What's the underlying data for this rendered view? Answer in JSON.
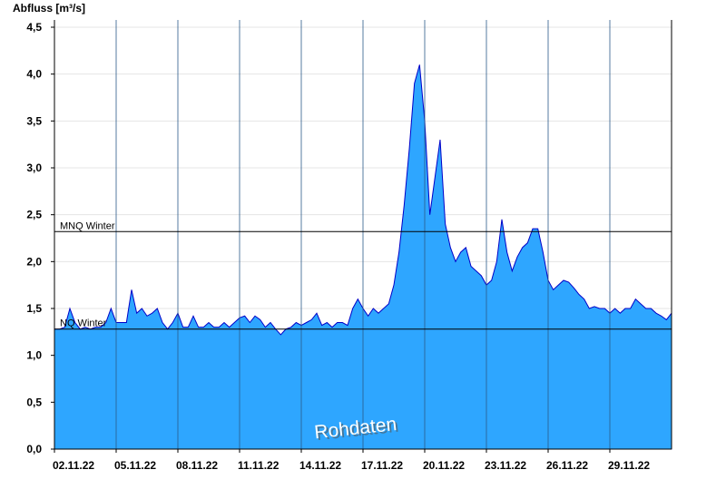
{
  "chart_data": {
    "type": "area",
    "title": "Abfluss [m³/s]",
    "color": "#2ea6ff",
    "line_color": "#0000c8",
    "grid": true,
    "ylim": [
      0,
      4.5
    ],
    "yticks": [
      {
        "value": 0,
        "label": "0,0"
      },
      {
        "value": 0.5,
        "label": "0,5"
      },
      {
        "value": 1,
        "label": "1,0"
      },
      {
        "value": 1.5,
        "label": "1,5"
      },
      {
        "value": 2,
        "label": "2,0"
      },
      {
        "value": 2.5,
        "label": "2,5"
      },
      {
        "value": 3,
        "label": "3,0"
      },
      {
        "value": 3.5,
        "label": "3,5"
      },
      {
        "value": 4,
        "label": "4,0"
      },
      {
        "value": 4.5,
        "label": "4,5"
      }
    ],
    "xticks": [
      "02.11.22",
      "05.11.22",
      "08.11.22",
      "11.11.22",
      "14.11.22",
      "17.11.22",
      "20.11.22",
      "23.11.22",
      "26.11.22",
      "29.11.22"
    ],
    "values": [
      1.28,
      1.28,
      1.3,
      1.5,
      1.35,
      1.28,
      1.3,
      1.28,
      1.3,
      1.3,
      1.35,
      1.5,
      1.35,
      1.35,
      1.35,
      1.7,
      1.45,
      1.5,
      1.42,
      1.45,
      1.5,
      1.35,
      1.28,
      1.35,
      1.45,
      1.3,
      1.3,
      1.42,
      1.3,
      1.3,
      1.35,
      1.3,
      1.3,
      1.35,
      1.3,
      1.35,
      1.4,
      1.42,
      1.35,
      1.42,
      1.38,
      1.3,
      1.35,
      1.28,
      1.22,
      1.28,
      1.3,
      1.35,
      1.32,
      1.35,
      1.38,
      1.45,
      1.32,
      1.35,
      1.3,
      1.35,
      1.35,
      1.32,
      1.5,
      1.6,
      1.5,
      1.42,
      1.5,
      1.45,
      1.5,
      1.55,
      1.75,
      2.1,
      2.6,
      3.2,
      3.9,
      4.1,
      3.5,
      2.5,
      2.9,
      3.3,
      2.4,
      2.15,
      2.0,
      2.1,
      2.15,
      1.95,
      1.9,
      1.85,
      1.75,
      1.8,
      2.0,
      2.45,
      2.1,
      1.9,
      2.05,
      2.15,
      2.2,
      2.35,
      2.35,
      2.1,
      1.8,
      1.7,
      1.75,
      1.8,
      1.78,
      1.72,
      1.65,
      1.6,
      1.5,
      1.52,
      1.5,
      1.5,
      1.45,
      1.5,
      1.45,
      1.5,
      1.5,
      1.6,
      1.55,
      1.5,
      1.5,
      1.45,
      1.42,
      1.38,
      1.45
    ],
    "reference_lines": [
      {
        "label": "MNQ Winter",
        "value": 2.32
      },
      {
        "label": "NQ Winter",
        "value": 1.28
      }
    ],
    "annotation": "Rohdaten"
  }
}
